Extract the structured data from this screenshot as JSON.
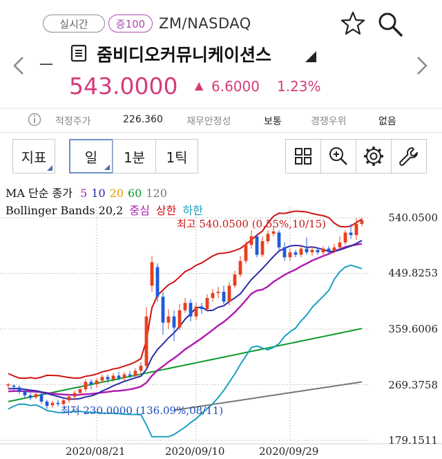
{
  "header": {
    "realtime_label": "실시간",
    "margin_label": "증100",
    "market": "ZM/NASDAQ",
    "stock_name": "줌비디오커뮤니케이션스",
    "price": "543.0000",
    "change_arrow": "▲",
    "change": "6.6000",
    "change_pct": "1.23%"
  },
  "info_bar": {
    "fair_price_label": "적정주가",
    "fair_price_value": "226.360",
    "financial_label": "재무안정성",
    "financial_value": "보통",
    "competitive_label": "경쟁우위",
    "competitive_value": "없음"
  },
  "toolbar": {
    "indicator": "지표",
    "day": "일",
    "one_min": "1분",
    "one_tick": "1틱",
    "icons": [
      "grid-icon",
      "zoom-in-icon",
      "gear-icon",
      "wrench-icon"
    ]
  },
  "legend": {
    "ma_title": "MA 단순 종가",
    "ma_periods": [
      {
        "label": "5",
        "color": "#b01fb0"
      },
      {
        "label": "10",
        "color": "#2a2aa8"
      },
      {
        "label": "20",
        "color": "#e0a000"
      },
      {
        "label": "60",
        "color": "#0a9a2a"
      },
      {
        "label": "120",
        "color": "#777777"
      }
    ],
    "bb_title": "Bollinger Bands 20,2",
    "bb_mid": "중심",
    "bb_upper": "상한",
    "bb_lower": "하한",
    "bb_mid_color": "#b01fb0",
    "bb_upper_color": "#d01010",
    "bb_lower_color": "#1aa0c0"
  },
  "chart_data": {
    "type": "candlestick",
    "y_ticks": [
      "540.0500",
      "449.8253",
      "359.6006",
      "269.3758",
      "179.1511"
    ],
    "ylim": [
      179.1511,
      540.05
    ],
    "x_ticks": [
      "2020/08/21",
      "2020/09/10",
      "2020/09/29"
    ],
    "annotations": {
      "high": "최고 540.0500 (0.55%,10/15)",
      "low": "최저 230.0000 (136.09%,08/11)"
    },
    "up_color": "#e8401c",
    "down_color": "#1f5bd8",
    "candles": [
      [
        268,
        270,
        262,
        272
      ],
      [
        268,
        266,
        260,
        270
      ],
      [
        265,
        258,
        254,
        268
      ],
      [
        258,
        252,
        248,
        262
      ],
      [
        252,
        248,
        244,
        256
      ],
      [
        249,
        254,
        246,
        258
      ],
      [
        254,
        242,
        238,
        256
      ],
      [
        242,
        235,
        230,
        245
      ],
      [
        236,
        240,
        232,
        243
      ],
      [
        240,
        238,
        234,
        245
      ],
      [
        238,
        244,
        236,
        248
      ],
      [
        244,
        250,
        240,
        254
      ],
      [
        250,
        256,
        246,
        260
      ],
      [
        256,
        262,
        252,
        266
      ],
      [
        262,
        274,
        258,
        278
      ],
      [
        274,
        270,
        262,
        278
      ],
      [
        270,
        276,
        264,
        280
      ],
      [
        276,
        282,
        272,
        286
      ],
      [
        282,
        278,
        272,
        286
      ],
      [
        278,
        284,
        274,
        288
      ],
      [
        284,
        280,
        276,
        290
      ],
      [
        280,
        286,
        276,
        290
      ],
      [
        286,
        284,
        280,
        292
      ],
      [
        284,
        292,
        280,
        296
      ],
      [
        292,
        300,
        288,
        306
      ],
      [
        300,
        380,
        296,
        395
      ],
      [
        430,
        468,
        420,
        478
      ],
      [
        460,
        412,
        404,
        466
      ],
      [
        412,
        370,
        350,
        420
      ],
      [
        370,
        380,
        360,
        392
      ],
      [
        380,
        362,
        340,
        390
      ],
      [
        362,
        390,
        358,
        400
      ],
      [
        390,
        402,
        386,
        410
      ],
      [
        402,
        380,
        372,
        408
      ],
      [
        380,
        396,
        374,
        402
      ],
      [
        396,
        392,
        384,
        402
      ],
      [
        392,
        410,
        388,
        416
      ],
      [
        410,
        418,
        404,
        424
      ],
      [
        418,
        420,
        410,
        428
      ],
      [
        420,
        404,
        400,
        430
      ],
      [
        404,
        430,
        398,
        436
      ],
      [
        430,
        448,
        426,
        454
      ],
      [
        448,
        470,
        444,
        478
      ],
      [
        470,
        496,
        466,
        502
      ],
      [
        496,
        510,
        490,
        520
      ],
      [
        510,
        480,
        476,
        514
      ],
      [
        480,
        502,
        476,
        510
      ],
      [
        502,
        514,
        498,
        520
      ],
      [
        514,
        518,
        510,
        526
      ],
      [
        516,
        492,
        486,
        520
      ],
      [
        492,
        476,
        470,
        500
      ],
      [
        476,
        484,
        470,
        490
      ],
      [
        484,
        480,
        476,
        488
      ],
      [
        480,
        490,
        476,
        496
      ],
      [
        490,
        484,
        480,
        508
      ],
      [
        484,
        488,
        478,
        494
      ],
      [
        488,
        484,
        480,
        492
      ],
      [
        484,
        490,
        480,
        494
      ],
      [
        490,
        486,
        482,
        494
      ],
      [
        486,
        492,
        482,
        498
      ],
      [
        492,
        500,
        488,
        510
      ],
      [
        500,
        516,
        496,
        520
      ],
      [
        516,
        512,
        506,
        530
      ],
      [
        512,
        530,
        504,
        540
      ],
      [
        530,
        536,
        526,
        540
      ]
    ]
  }
}
